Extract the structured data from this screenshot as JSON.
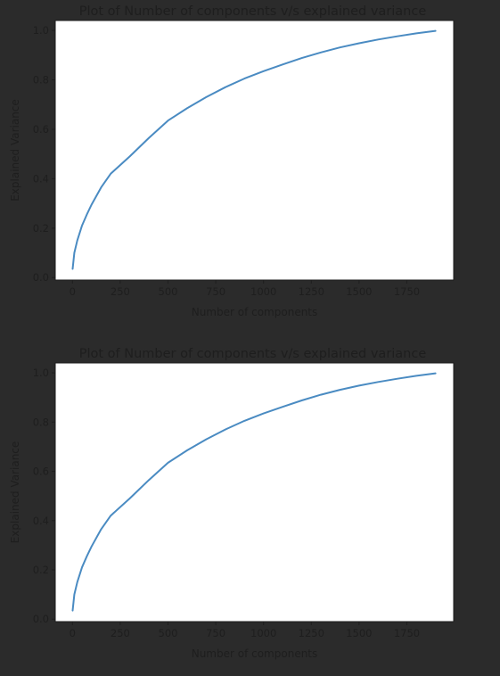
{
  "theme": {
    "page_bg": "#2b2b2b",
    "plot_bg": "#ffffff",
    "line_color": "#4a8bc2",
    "text_color": "#1e1e1e",
    "axis_color": "#1e1e1e"
  },
  "chart_data": [
    {
      "type": "line",
      "title": "Plot of Number of components v/s explained variance",
      "xlabel": "Number of components",
      "ylabel": "Explained Variance",
      "xlim": [
        -90,
        1995
      ],
      "ylim": [
        -0.01,
        1.04
      ],
      "xticks": [
        0,
        250,
        500,
        750,
        1000,
        1250,
        1500,
        1750
      ],
      "xtick_labels": [
        "0",
        "250",
        "500",
        "750",
        "1000",
        "1250",
        "1500",
        "1750"
      ],
      "yticks": [
        0.0,
        0.2,
        0.4,
        0.6,
        0.8,
        1.0
      ],
      "ytick_labels": [
        "0.0",
        "0.2",
        "0.4",
        "0.6",
        "0.8",
        "1.0"
      ],
      "grid": false,
      "x": [
        1,
        10,
        25,
        50,
        75,
        100,
        150,
        200,
        300,
        400,
        500,
        600,
        700,
        800,
        900,
        1000,
        1100,
        1200,
        1300,
        1400,
        1500,
        1600,
        1700,
        1800,
        1900
      ],
      "y": [
        0.035,
        0.1,
        0.15,
        0.21,
        0.255,
        0.295,
        0.365,
        0.42,
        0.49,
        0.565,
        0.635,
        0.685,
        0.73,
        0.77,
        0.805,
        0.835,
        0.862,
        0.888,
        0.911,
        0.931,
        0.948,
        0.963,
        0.976,
        0.988,
        0.998
      ]
    },
    {
      "type": "line",
      "title": "Plot of Number of components v/s explained variance",
      "xlabel": "Number of components",
      "ylabel": "Explained Variance",
      "xlim": [
        -90,
        1995
      ],
      "ylim": [
        -0.01,
        1.04
      ],
      "xticks": [
        0,
        250,
        500,
        750,
        1000,
        1250,
        1500,
        1750
      ],
      "xtick_labels": [
        "0",
        "250",
        "500",
        "750",
        "1000",
        "1250",
        "1500",
        "1750"
      ],
      "yticks": [
        0.0,
        0.2,
        0.4,
        0.6,
        0.8,
        1.0
      ],
      "ytick_labels": [
        "0.0",
        "0.2",
        "0.4",
        "0.6",
        "0.8",
        "1.0"
      ],
      "grid": false,
      "x": [
        1,
        10,
        25,
        50,
        75,
        100,
        150,
        200,
        300,
        400,
        500,
        600,
        700,
        800,
        900,
        1000,
        1100,
        1200,
        1300,
        1400,
        1500,
        1600,
        1700,
        1800,
        1900
      ],
      "y": [
        0.035,
        0.1,
        0.15,
        0.21,
        0.255,
        0.295,
        0.365,
        0.42,
        0.49,
        0.565,
        0.635,
        0.685,
        0.73,
        0.77,
        0.805,
        0.835,
        0.862,
        0.888,
        0.911,
        0.931,
        0.948,
        0.963,
        0.976,
        0.988,
        0.998
      ]
    }
  ]
}
